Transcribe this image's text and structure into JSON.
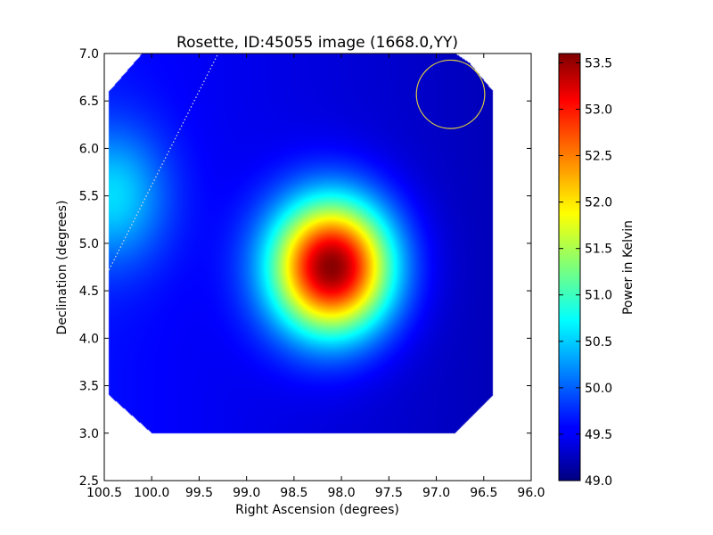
{
  "chart_data": {
    "type": "heatmap",
    "title": "Rosette, ID:45055 image (1668.0,YY)",
    "xlabel": "Right Ascension (degrees)",
    "ylabel": "Declination (degrees)",
    "xlim": [
      100.5,
      96.0
    ],
    "ylim": [
      2.5,
      7.0
    ],
    "x_inverted": true,
    "x_ticks": [
      100.5,
      100.0,
      99.5,
      99.0,
      98.5,
      98.0,
      97.5,
      97.0,
      96.5,
      96.0
    ],
    "x_tick_labels": [
      "100.5",
      "100.0",
      "99.5",
      "99.0",
      "98.5",
      "98.0",
      "97.5",
      "97.0",
      "96.5",
      "96.0"
    ],
    "y_ticks": [
      2.5,
      3.0,
      3.5,
      4.0,
      4.5,
      5.0,
      5.5,
      6.0,
      6.5,
      7.0
    ],
    "y_tick_labels": [
      "2.5",
      "3.0",
      "3.5",
      "4.0",
      "4.5",
      "5.0",
      "5.5",
      "6.0",
      "6.5",
      "7.0"
    ],
    "colormap": "jet",
    "colorbar": {
      "label": "Power in Kelvin",
      "vmin": 49.0,
      "vmax": 53.6,
      "ticks": [
        49.0,
        49.5,
        50.0,
        50.5,
        51.0,
        51.5,
        52.0,
        52.5,
        53.0,
        53.5
      ],
      "tick_labels": [
        "49.0",
        "49.5",
        "50.0",
        "50.5",
        "51.0",
        "51.5",
        "52.0",
        "52.5",
        "53.0",
        "53.5"
      ]
    },
    "coverage_polygon": [
      [
        100.0,
        3.0
      ],
      [
        99.95,
        3.0
      ],
      [
        99.3,
        3.0
      ],
      [
        96.8,
        3.0
      ],
      [
        96.4,
        3.4
      ],
      [
        96.4,
        6.6
      ],
      [
        96.65,
        6.9
      ],
      [
        96.8,
        7.0
      ],
      [
        100.1,
        7.0
      ],
      [
        100.45,
        6.6
      ],
      [
        100.45,
        3.4
      ]
    ],
    "background_level": 49.45,
    "background_gradient": {
      "left_level": 49.8,
      "right_level": 49.0
    },
    "sources": [
      {
        "ra": 98.1,
        "dec": 4.75,
        "peak": 53.6,
        "sigma_ra": 0.45,
        "sigma_dec": 0.5
      },
      {
        "ra": 100.4,
        "dec": 5.5,
        "peak": 50.4,
        "sigma_ra": 0.4,
        "sigma_dec": 0.5
      }
    ],
    "beam_circle": {
      "ra": 96.85,
      "dec": 6.57,
      "radius_deg": 0.36,
      "color": "#e0d040"
    },
    "dotted_line": {
      "points": [
        [
          100.45,
          4.72
        ],
        [
          99.3,
          7.0
        ]
      ],
      "color": "#dddddd"
    }
  }
}
